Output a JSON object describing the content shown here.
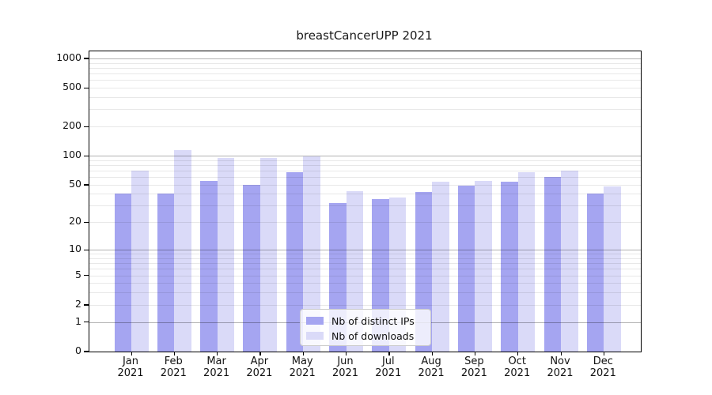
{
  "chart_data": {
    "type": "bar",
    "title": "breastCancerUPP 2021",
    "year": "2021",
    "months": [
      "Jan",
      "Feb",
      "Mar",
      "Apr",
      "May",
      "Jun",
      "Jul",
      "Aug",
      "Sep",
      "Oct",
      "Nov",
      "Dec"
    ],
    "categories": [
      "Jan 2021",
      "Feb 2021",
      "Mar 2021",
      "Apr 2021",
      "May 2021",
      "Jun 2021",
      "Jul 2021",
      "Aug 2021",
      "Sep 2021",
      "Oct 2021",
      "Nov 2021",
      "Dec 2021"
    ],
    "series": [
      {
        "name": "Nb of distinct IPs",
        "color": "#a5a5f1",
        "values": [
          40,
          40,
          55,
          50,
          67,
          32,
          35,
          42,
          49,
          54,
          60,
          40
        ]
      },
      {
        "name": "Nb of downloads",
        "color": "#dadaf8",
        "values": [
          70,
          114,
          95,
          94,
          98,
          43,
          37,
          54,
          55,
          68,
          70,
          48
        ]
      }
    ],
    "yscale": "log10(value+1)",
    "ylim": [
      0,
      1200
    ],
    "y_tick_values": [
      1000,
      500,
      200,
      100,
      50,
      20,
      10,
      5,
      2,
      1,
      0
    ],
    "y_tick_labels": [
      "1000",
      "500",
      "200",
      "100",
      "50",
      "20",
      "10",
      "5",
      "2",
      "1",
      "0"
    ],
    "major_gridline_values": [
      1,
      10,
      100,
      1000
    ],
    "minor_gridline_values": [
      2,
      3,
      4,
      5,
      6,
      7,
      8,
      9,
      20,
      30,
      40,
      50,
      60,
      70,
      80,
      90,
      200,
      300,
      400,
      500,
      600,
      700,
      800,
      900
    ],
    "grid": "horizontal, major and minor, drawn over bars",
    "legend": {
      "position": "inside lower-center",
      "entries": [
        "Nb of distinct IPs",
        "Nb of downloads"
      ]
    },
    "colors": {
      "distinct_ips": "#a5a5f1",
      "downloads": "#dadaf8",
      "major_grid": "#b3b3b3",
      "minor_grid": "#e8e8e8",
      "axis": "#000000",
      "background": "#ffffff"
    }
  }
}
